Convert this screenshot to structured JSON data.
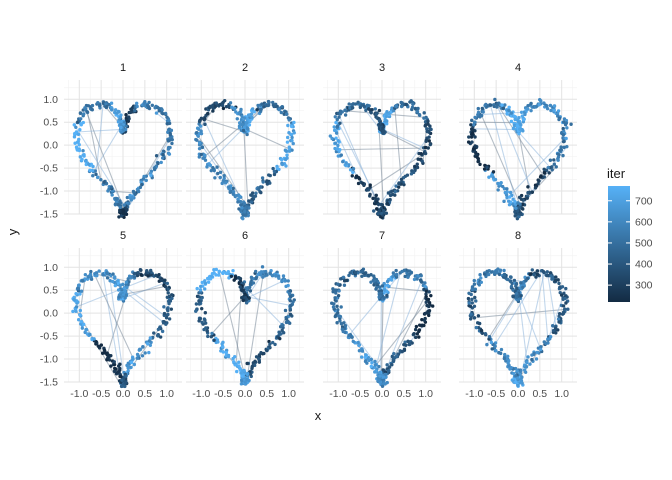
{
  "chart_data": {
    "type": "scatter",
    "facets": [
      "1",
      "2",
      "3",
      "4",
      "5",
      "6",
      "7",
      "8"
    ],
    "xlabel": "x",
    "ylabel": "y",
    "xlim": [
      -1.35,
      1.35
    ],
    "ylim": [
      -1.5,
      1.42
    ],
    "xticks": [
      -1.0,
      -0.5,
      0.0,
      0.5,
      1.0
    ],
    "xtick_labels": [
      "-1.0",
      "-0.5",
      "0.0",
      "0.5",
      "1.0"
    ],
    "yticks": [
      1.0,
      0.5,
      0.0,
      -0.5,
      -1.0,
      -1.5
    ],
    "ytick_labels": [
      "1.0",
      "0.5",
      "0.0",
      "-0.5",
      "-1.0",
      "-1.5"
    ],
    "grid": true,
    "color_scale": {
      "title": "iter",
      "range": [
        220,
        770
      ],
      "breaks": [
        700,
        600,
        500,
        400,
        300
      ],
      "break_labels": [
        "700",
        "600",
        "500",
        "400",
        "300"
      ],
      "low_color": "#132B43",
      "high_color": "#56B1F7"
    },
    "legend_position": "right",
    "heart_shape": "x = 16 sin^3(t)/15, y = (13 cos t - 5 cos 2t - 2 cos 3t - cos 4t)/12 - 0.1",
    "points_per_facet": 360,
    "segments_per_facet": 14
  }
}
